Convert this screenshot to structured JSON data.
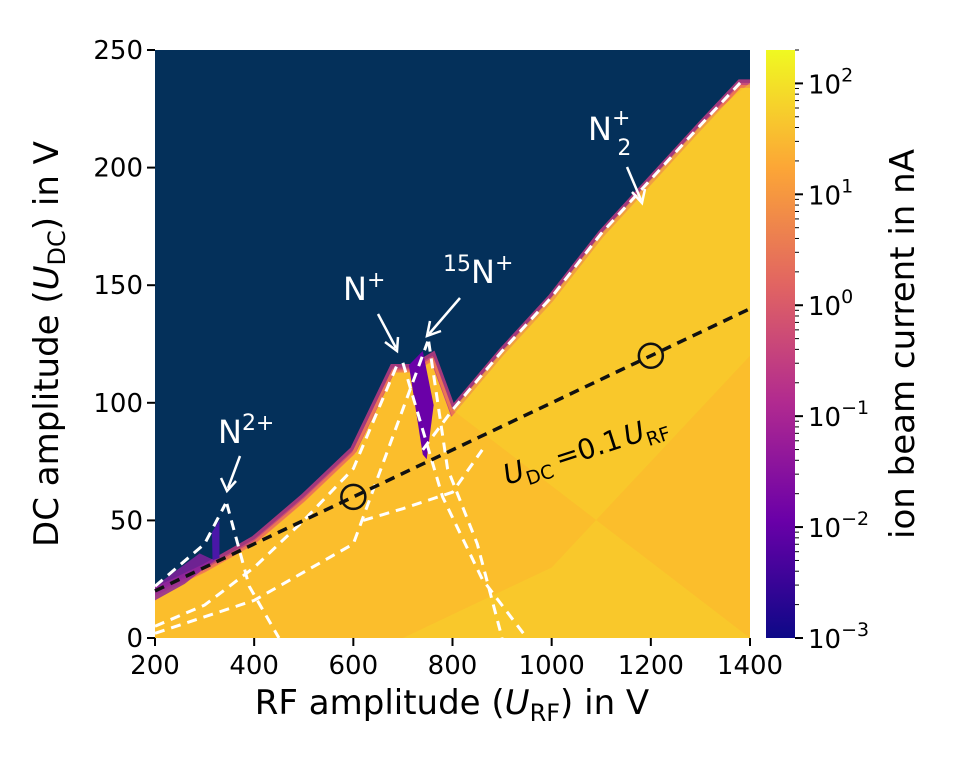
{
  "chart_data": {
    "type": "heatmap",
    "xlabel": {
      "main": "RF amplitude (",
      "var": "U",
      "sub": "RF",
      "tail": ") in V"
    },
    "ylabel": {
      "main": "DC amplitude (",
      "var": "U",
      "sub": "DC",
      "tail": ") in V"
    },
    "xlim": [
      200,
      1400
    ],
    "ylim": [
      0,
      250
    ],
    "x_ticks": [
      200,
      400,
      600,
      800,
      1000,
      1200,
      1400
    ],
    "y_ticks": [
      0,
      50,
      100,
      150,
      200,
      250
    ],
    "colorbar": {
      "label": "ion beam current in nA",
      "scale": "log",
      "range": [
        0.001,
        200
      ],
      "ticks": [
        {
          "value": 100,
          "base": "10",
          "exp": "2"
        },
        {
          "value": 10,
          "base": "10",
          "exp": "1"
        },
        {
          "value": 1,
          "base": "10",
          "exp": "0"
        },
        {
          "value": 0.1,
          "base": "10",
          "exp": "−1"
        },
        {
          "value": 0.01,
          "base": "10",
          "exp": "−2"
        },
        {
          "value": 0.001,
          "base": "10",
          "exp": "−3"
        }
      ],
      "colors": [
        "#0d0887",
        "#6a00a8",
        "#b12a90",
        "#e16462",
        "#fca636",
        "#f0f921"
      ]
    },
    "background_color": "#04305a",
    "stable_color": "#fbbe2c",
    "region_boundary": [
      [
        200,
        20
      ],
      [
        300,
        30
      ],
      [
        400,
        42
      ],
      [
        500,
        60
      ],
      [
        600,
        80
      ],
      [
        680,
        115
      ],
      [
        720,
        115
      ],
      [
        760,
        120
      ],
      [
        800,
        97
      ],
      [
        900,
        122
      ],
      [
        1000,
        145
      ],
      [
        1100,
        172
      ],
      [
        1200,
        195
      ],
      [
        1300,
        218
      ],
      [
        1380,
        236
      ],
      [
        1400,
        236
      ]
    ],
    "peaks": [
      {
        "label": "N",
        "sup": "2+",
        "sub": "",
        "x": 350,
        "y": 57
      },
      {
        "label": "N",
        "sup": "+",
        "sub": "",
        "x": 700,
        "y": 117
      },
      {
        "label": "N",
        "sup": "+",
        "sub": "",
        "pre": "15",
        "x": 750,
        "y": 127
      },
      {
        "label": "N",
        "sup": "+",
        "sub": "2",
        "x": 1200,
        "y": 182
      }
    ],
    "annotation_labels": {
      "n2plus": {
        "base": "N",
        "sup": "2+"
      },
      "nplus": {
        "base": "N",
        "sup": "+"
      },
      "n15plus": {
        "pre": "15",
        "base": "N",
        "sup": "+"
      },
      "n2mol": {
        "base": "N",
        "sup": "+",
        "sub": "2"
      },
      "scanline": {
        "u1": "U",
        "s1": "DC",
        "eq": "=0.1",
        "u2": "U",
        "s2": "RF"
      }
    },
    "scan_line": {
      "slope": 0.1,
      "x": [
        200,
        1400
      ]
    },
    "scan_markers": [
      {
        "x": 600,
        "y": 60
      },
      {
        "x": 1200,
        "y": 120
      }
    ]
  }
}
